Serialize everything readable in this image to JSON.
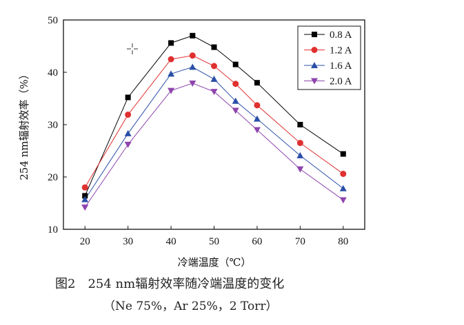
{
  "chart_data": {
    "type": "line",
    "xlabel": "冷端温度（℃）",
    "ylabel": "254 nm辐射效率（%）",
    "xlim": [
      15,
      85
    ],
    "ylim": [
      10,
      50
    ],
    "xticks": [
      20,
      30,
      40,
      50,
      60,
      70,
      80
    ],
    "yticks": [
      10,
      20,
      30,
      40,
      50
    ],
    "grid": false,
    "legend_position": "top-right",
    "x": [
      20,
      30,
      40,
      45,
      50,
      55,
      60,
      70,
      80
    ],
    "series": [
      {
        "name": "0.8 A",
        "color": "#000000",
        "marker": "square",
        "values": [
          16.4,
          35.2,
          45.6,
          47.0,
          44.8,
          41.5,
          38.0,
          30.0,
          24.4
        ]
      },
      {
        "name": "1.2 A",
        "color": "#e03030",
        "marker": "circle",
        "values": [
          18.0,
          31.9,
          42.5,
          43.2,
          41.2,
          37.8,
          33.7,
          26.5,
          20.6
        ]
      },
      {
        "name": "1.6 A",
        "color": "#2a4fa8",
        "marker": "triangle-up",
        "values": [
          15.7,
          28.3,
          39.7,
          41.0,
          38.7,
          34.5,
          31.1,
          24.1,
          17.8
        ]
      },
      {
        "name": "2.0 A",
        "color": "#8e44ad",
        "marker": "triangle-down",
        "values": [
          14.2,
          26.2,
          36.5,
          37.9,
          36.3,
          32.7,
          29.0,
          21.5,
          15.6
        ]
      }
    ]
  },
  "caption": {
    "title": "图2　254 nm辐射效率随冷端温度的变化",
    "subtitle": "（Ne 75%，Ar 25%，2 Torr）"
  }
}
